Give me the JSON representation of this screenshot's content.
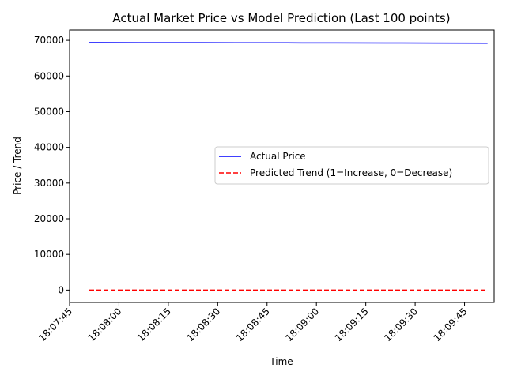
{
  "chart_data": {
    "type": "line",
    "title": "Actual Market Price vs Model Prediction (Last 100 points)",
    "xlabel": "Time",
    "ylabel": "Price / Trend",
    "x_ticks": [
      "18:07:45",
      "18:08:00",
      "18:08:15",
      "18:08:30",
      "18:08:45",
      "18:09:00",
      "18:09:15",
      "18:09:30",
      "18:09:45"
    ],
    "x_range": [
      "18:07:45",
      "18:09:54"
    ],
    "y_ticks": [
      0,
      10000,
      20000,
      30000,
      40000,
      50000,
      60000,
      70000
    ],
    "ylim": [
      -3460,
      72900
    ],
    "x_start": "18:07:51",
    "x_end": "18:09:52",
    "series": [
      {
        "name": "Actual Price",
        "color": "#0000ff",
        "style": "solid",
        "x": [
          "18:07:51",
          "18:08:06",
          "18:08:21",
          "18:08:36",
          "18:08:51",
          "18:09:06",
          "18:09:21",
          "18:09:36",
          "18:09:52"
        ],
        "values": [
          69350,
          69340,
          69330,
          69310,
          69290,
          69270,
          69250,
          69230,
          69200
        ]
      },
      {
        "name": "Predicted Trend (1=Increase, 0=Decrease)",
        "color": "#ff0000",
        "style": "dashed",
        "x": [
          "18:07:51",
          "18:08:06",
          "18:08:21",
          "18:08:36",
          "18:08:51",
          "18:09:06",
          "18:09:21",
          "18:09:36",
          "18:09:52"
        ],
        "values": [
          0,
          0,
          0,
          0,
          0,
          0,
          0,
          0,
          0
        ]
      }
    ],
    "legend_position": "center-right",
    "grid": false
  }
}
